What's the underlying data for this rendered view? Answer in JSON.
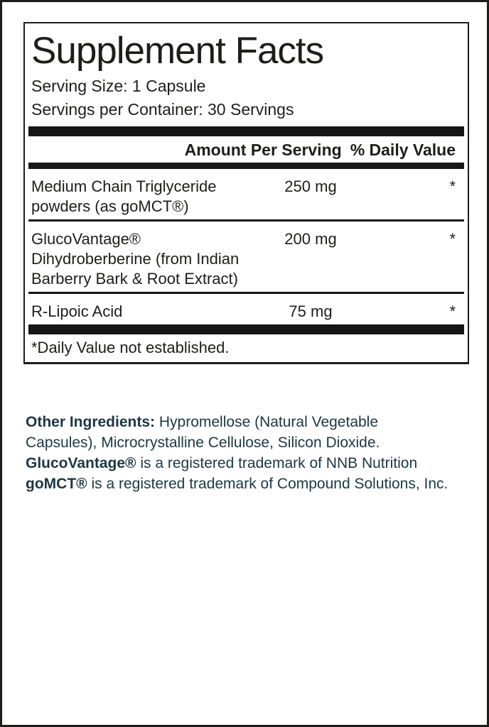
{
  "panel": {
    "title": "Supplement Facts",
    "serving_size": "Serving Size: 1 Capsule",
    "servings_per_container": "Servings per Container: 30 Servings",
    "columns": {
      "amount_header": "Amount Per Serving",
      "daily_value_header": "% Daily Value"
    },
    "rows": [
      {
        "name": "Medium Chain Triglyceride powders (as goMCT®)",
        "amount": "250 mg",
        "daily_value": "*"
      },
      {
        "name": "GlucoVantage® Dihydroberberine (from Indian Barberry Bark & Root Extract)",
        "amount": "200 mg",
        "daily_value": "*"
      },
      {
        "name": "R-Lipoic Acid",
        "amount": "75 mg",
        "daily_value": "*"
      }
    ],
    "footnote": "*Daily Value not established."
  },
  "other_ingredients_segments": [
    {
      "text": "Other Ingredients:",
      "bold": true
    },
    {
      "text": " Hypromellose (Natural Vegetable Capsules), Microcrystalline Cellulose, Silicon Dioxide. ",
      "bold": false
    },
    {
      "text": "GlucoVantage®",
      "bold": true
    },
    {
      "text": " is a registered trademark of NNB Nutrition ",
      "bold": false
    },
    {
      "text": "goMCT®",
      "bold": true
    },
    {
      "text": " is a registered trademark of Compound Solutions, Inc.",
      "bold": false
    }
  ],
  "colors": {
    "ink": "#1d1d1b",
    "bar": "#161616",
    "footer_text": "#1c3743",
    "background": "#ffffff"
  }
}
